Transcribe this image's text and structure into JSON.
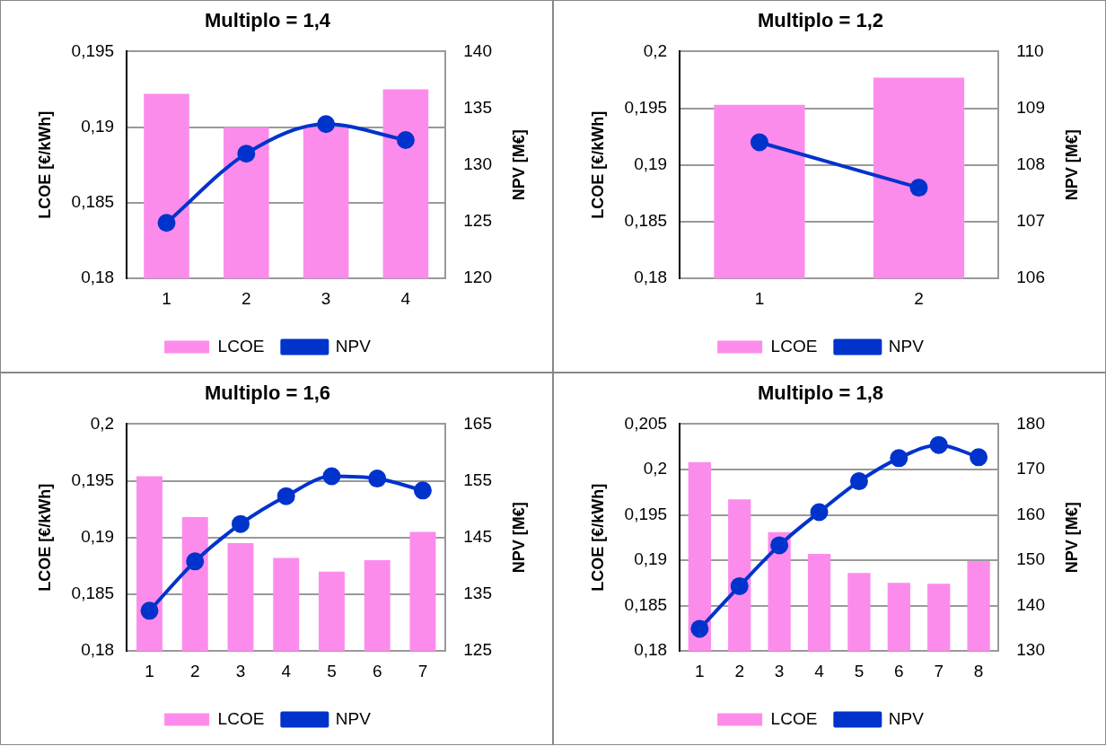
{
  "chart_data": [
    {
      "type": "bar",
      "title": "Multiplo = 1,4",
      "ylabel": "LCOE [€/kWh]",
      "y2label": "NPV [M€]",
      "categories": [
        "1",
        "2",
        "3",
        "4"
      ],
      "series": [
        {
          "name": "LCOE",
          "color": "#fc8cec",
          "values": [
            0.1922,
            0.19,
            0.19,
            0.1925
          ]
        },
        {
          "name": "NPV",
          "type": "line",
          "axis": "y2",
          "color": "#0033cc",
          "values": [
            124.9,
            131.0,
            133.6,
            132.2
          ]
        }
      ],
      "ylim": [
        0.18,
        0.195
      ],
      "yticks": [
        {
          "value": 0.18,
          "label": "0,18"
        },
        {
          "value": 0.185,
          "label": "0,185"
        },
        {
          "value": 0.19,
          "label": "0,19"
        },
        {
          "value": 0.195,
          "label": "0,195"
        }
      ],
      "y2lim": [
        120,
        140
      ],
      "y2ticks": [
        120,
        125,
        130,
        135,
        140
      ],
      "grid": "y",
      "legend": "bottom",
      "marker": "circle"
    },
    {
      "type": "bar",
      "title": "Multiplo = 1,2",
      "ylabel": "LCOE [€/kWh]",
      "y2label": "NPV [M€]",
      "categories": [
        "1",
        "2"
      ],
      "series": [
        {
          "name": "LCOE",
          "color": "#fc8cec",
          "values": [
            0.1953,
            0.1977
          ]
        },
        {
          "name": "NPV",
          "type": "line",
          "axis": "y2",
          "color": "#0033cc",
          "values": [
            108.4,
            107.6
          ]
        }
      ],
      "ylim": [
        0.18,
        0.2
      ],
      "yticks": [
        {
          "value": 0.18,
          "label": "0,18"
        },
        {
          "value": 0.185,
          "label": "0,185"
        },
        {
          "value": 0.19,
          "label": "0,19"
        },
        {
          "value": 0.195,
          "label": "0,195"
        },
        {
          "value": 0.2,
          "label": "0,2"
        }
      ],
      "y2lim": [
        106,
        110
      ],
      "y2ticks": [
        106,
        107,
        108,
        109,
        110
      ],
      "grid": "y",
      "legend": "bottom",
      "marker": "circle"
    },
    {
      "type": "bar",
      "title": "Multiplo = 1,6",
      "ylabel": "LCOE [€/kWh]",
      "y2label": "NPV [M€]",
      "categories": [
        "1",
        "2",
        "3",
        "4",
        "5",
        "6",
        "7"
      ],
      "series": [
        {
          "name": "LCOE",
          "color": "#fc8cec",
          "values": [
            0.1954,
            0.1918,
            0.1895,
            0.1882,
            0.187,
            0.188,
            0.1905
          ]
        },
        {
          "name": "NPV",
          "type": "line",
          "axis": "y2",
          "color": "#0033cc",
          "values": [
            132.1,
            140.8,
            147.4,
            152.3,
            155.8,
            155.4,
            153.3
          ]
        }
      ],
      "ylim": [
        0.18,
        0.2
      ],
      "yticks": [
        {
          "value": 0.18,
          "label": "0,18"
        },
        {
          "value": 0.185,
          "label": "0,185"
        },
        {
          "value": 0.19,
          "label": "0,19"
        },
        {
          "value": 0.195,
          "label": "0,195"
        },
        {
          "value": 0.2,
          "label": "0,2"
        }
      ],
      "y2lim": [
        125,
        165
      ],
      "y2ticks": [
        125,
        135,
        145,
        155,
        165
      ],
      "grid": "y",
      "legend": "bottom",
      "marker": "circle"
    },
    {
      "type": "bar",
      "title": "Multiplo = 1,8",
      "ylabel": "LCOE [€/kWh]",
      "y2label": "NPV [M€]",
      "categories": [
        "1",
        "2",
        "3",
        "4",
        "5",
        "6",
        "7",
        "8"
      ],
      "series": [
        {
          "name": "LCOE",
          "color": "#fc8cec",
          "values": [
            0.2008,
            0.1967,
            0.1931,
            0.1907,
            0.1886,
            0.1875,
            0.1874,
            0.1899
          ]
        },
        {
          "name": "NPV",
          "type": "line",
          "axis": "y2",
          "color": "#0033cc",
          "values": [
            134.9,
            144.3,
            153.3,
            160.6,
            167.4,
            172.5,
            175.4,
            172.7
          ]
        }
      ],
      "ylim": [
        0.18,
        0.205
      ],
      "yticks": [
        {
          "value": 0.18,
          "label": "0,18"
        },
        {
          "value": 0.185,
          "label": "0,185"
        },
        {
          "value": 0.19,
          "label": "0,19"
        },
        {
          "value": 0.195,
          "label": "0,195"
        },
        {
          "value": 0.2,
          "label": "0,2"
        },
        {
          "value": 0.205,
          "label": "0,205"
        }
      ],
      "y2lim": [
        130,
        180
      ],
      "y2ticks": [
        130,
        140,
        150,
        160,
        170,
        180
      ],
      "grid": "y",
      "legend": "bottom",
      "marker": "circle"
    }
  ]
}
